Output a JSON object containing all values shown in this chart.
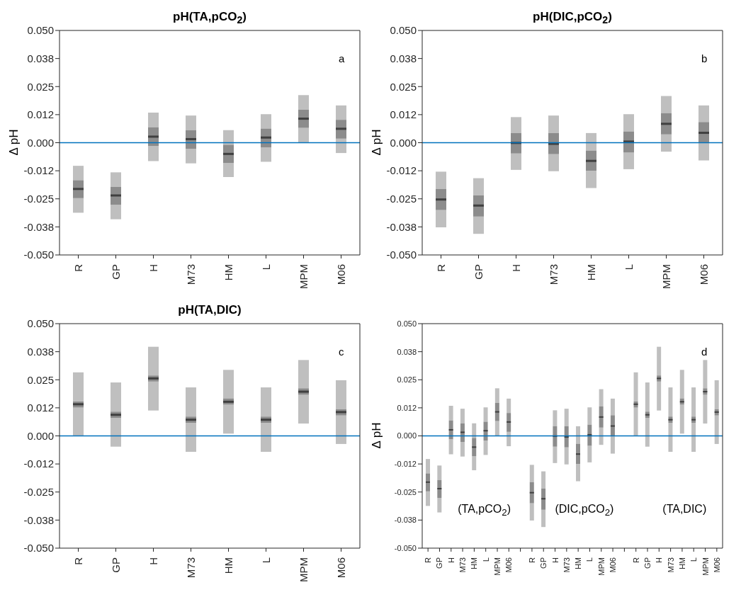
{
  "chart_data": [
    {
      "type": "box",
      "title": "pH(TA,pCO$_{2}$)",
      "ylabel": "Δ pH",
      "annotations": [
        "a"
      ],
      "categories": [
        "R",
        "GP",
        "H",
        "M73",
        "HM",
        "L",
        "MPM",
        "M06"
      ],
      "ylim": [
        -0.05,
        0.05
      ],
      "yticks": [
        {
          "value": -0.05,
          "label": "-0.050"
        },
        {
          "value": -0.0375,
          "label": "-0.038"
        },
        {
          "value": -0.025,
          "label": "-0.025"
        },
        {
          "value": -0.0125,
          "label": "-0.012"
        },
        {
          "value": 0,
          "label": "0.000"
        },
        {
          "value": 0.0125,
          "label": "0.012"
        },
        {
          "value": 0.025,
          "label": "0.025"
        },
        {
          "value": 0.0375,
          "label": "0.038"
        },
        {
          "value": 0.05,
          "label": "0.050"
        }
      ],
      "ref_lines": [
        {
          "axis": "y",
          "value": 0,
          "color": "#0072bd"
        }
      ],
      "series": [
        {
          "color": "#8c8c8c",
          "boxes": [
            {
              "low": -0.0312,
              "q1": -0.0247,
              "median": -0.0206,
              "q3": -0.0167,
              "high": -0.0103
            },
            {
              "low": -0.0341,
              "q1": -0.0276,
              "median": -0.0235,
              "q3": -0.0197,
              "high": -0.0132
            },
            {
              "low": -0.0082,
              "q1": -0.0015,
              "median": 0.0027,
              "q3": 0.0069,
              "high": 0.0134
            },
            {
              "low": -0.0092,
              "q1": -0.0027,
              "median": 0.0016,
              "q3": 0.0056,
              "high": 0.0121
            },
            {
              "low": -0.0153,
              "q1": -0.009,
              "median": -0.005,
              "q3": -0.0009,
              "high": 0.0056
            },
            {
              "low": -0.0085,
              "q1": -0.0021,
              "median": 0.0023,
              "q3": 0.0063,
              "high": 0.0127
            },
            {
              "low": 0,
              "q1": 0.0066,
              "median": 0.0107,
              "q3": 0.0147,
              "high": 0.0212
            },
            {
              "low": -0.0046,
              "q1": 0.0018,
              "median": 0.0062,
              "q3": 0.0102,
              "high": 0.0166
            }
          ]
        }
      ]
    },
    {
      "type": "box",
      "title": "pH(DIC,pCO$_{2}$)",
      "ylabel": "Δ pH",
      "annotations": [
        "b"
      ],
      "categories": [
        "R",
        "GP",
        "H",
        "M73",
        "HM",
        "L",
        "MPM",
        "M06"
      ],
      "ylim": [
        -0.05,
        0.05
      ],
      "yticks": [
        {
          "value": -0.05,
          "label": "-0.050"
        },
        {
          "value": -0.0375,
          "label": "-0.038"
        },
        {
          "value": -0.025,
          "label": "-0.025"
        },
        {
          "value": -0.0125,
          "label": "-0.012"
        },
        {
          "value": 0,
          "label": "0.000"
        },
        {
          "value": 0.0125,
          "label": "0.012"
        },
        {
          "value": 0.025,
          "label": "0.025"
        },
        {
          "value": 0.0375,
          "label": "0.038"
        },
        {
          "value": 0.05,
          "label": "0.050"
        }
      ],
      "ref_lines": [
        {
          "axis": "y",
          "value": 0,
          "color": "#0072bd"
        }
      ],
      "series": [
        {
          "color": "#8c8c8c",
          "boxes": [
            {
              "low": -0.0377,
              "q1": -0.03,
              "median": -0.0253,
              "q3": -0.0206,
              "high": -0.0129
            },
            {
              "low": -0.0406,
              "q1": -0.0329,
              "median": -0.028,
              "q3": -0.0235,
              "high": -0.0158
            },
            {
              "low": -0.0121,
              "q1": -0.0048,
              "median": -0.0001,
              "q3": 0.0043,
              "high": 0.0114
            },
            {
              "low": -0.0127,
              "q1": -0.0051,
              "median": -0.0005,
              "q3": 0.0043,
              "high": 0.0121
            },
            {
              "low": -0.0202,
              "q1": -0.0125,
              "median": -0.0081,
              "q3": -0.0035,
              "high": 0.0043
            },
            {
              "low": -0.0118,
              "q1": -0.0044,
              "median": 0.0005,
              "q3": 0.005,
              "high": 0.0127
            },
            {
              "low": -0.004,
              "q1": 0.0037,
              "median": 0.0084,
              "q3": 0.0131,
              "high": 0.0208
            },
            {
              "low": -0.0079,
              "q1": -0.0001,
              "median": 0.0044,
              "q3": 0.0092,
              "high": 0.0166
            }
          ]
        }
      ]
    },
    {
      "type": "box",
      "title": "pH(TA,DIC)",
      "annotations": [
        "c"
      ],
      "categories": [
        "R",
        "GP",
        "H",
        "M73",
        "HM",
        "L",
        "MPM",
        "M06"
      ],
      "ylim": [
        -0.05,
        0.05
      ],
      "yticks": [
        {
          "value": -0.05,
          "label": "-0.050"
        },
        {
          "value": -0.0375,
          "label": "-0.038"
        },
        {
          "value": -0.025,
          "label": "-0.025"
        },
        {
          "value": -0.0125,
          "label": "-0.012"
        },
        {
          "value": 0,
          "label": "0.000"
        },
        {
          "value": 0.0125,
          "label": "0.012"
        },
        {
          "value": 0.025,
          "label": "0.025"
        },
        {
          "value": 0.0375,
          "label": "0.038"
        },
        {
          "value": 0.05,
          "label": "0.050"
        }
      ],
      "ref_lines": [
        {
          "axis": "y",
          "value": 0,
          "color": "#0072bd"
        }
      ],
      "series": [
        {
          "color": "#8c8c8c",
          "boxes": [
            {
              "low": 0,
              "q1": 0.0126,
              "median": 0.0141,
              "q3": 0.0153,
              "high": 0.0283
            },
            {
              "low": -0.0048,
              "q1": 0.008,
              "median": 0.0094,
              "q3": 0.0108,
              "high": 0.0238
            },
            {
              "low": 0.0113,
              "q1": 0.0242,
              "median": 0.0256,
              "q3": 0.0269,
              "high": 0.0397
            },
            {
              "low": -0.0071,
              "q1": 0.0058,
              "median": 0.0072,
              "q3": 0.0086,
              "high": 0.0216
            },
            {
              "low": 0.001,
              "q1": 0.0139,
              "median": 0.0152,
              "q3": 0.0167,
              "high": 0.0294
            },
            {
              "low": -0.0071,
              "q1": 0.0058,
              "median": 0.0072,
              "q3": 0.0086,
              "high": 0.0216
            },
            {
              "low": 0.0055,
              "q1": 0.0183,
              "median": 0.0197,
              "q3": 0.0212,
              "high": 0.0338
            },
            {
              "low": -0.0036,
              "q1": 0.0091,
              "median": 0.0106,
              "q3": 0.0119,
              "high": 0.0248
            }
          ]
        }
      ]
    },
    {
      "type": "box",
      "ylabel": "Δ pH",
      "annotations": [
        "d",
        "(TA,pCO$_{2}$)",
        "(DIC,pCO$_{2}$)",
        "(TA,DIC)"
      ],
      "categories": [
        "R",
        "GP",
        "H",
        "M73",
        "HM",
        "L",
        "MPM",
        "M06",
        null,
        "R",
        "GP",
        "H",
        "M73",
        "HM",
        "L",
        "MPM",
        "M06",
        null,
        "R",
        "GP",
        "H",
        "M73",
        "HM",
        "L",
        "MPM",
        "M06"
      ],
      "ylim": [
        -0.05,
        0.05
      ],
      "yticks": [
        {
          "value": -0.05,
          "label": "-0.050"
        },
        {
          "value": -0.0375,
          "label": "-0.038"
        },
        {
          "value": -0.025,
          "label": "-0.025"
        },
        {
          "value": -0.0125,
          "label": "-0.012"
        },
        {
          "value": 0,
          "label": "0.000"
        },
        {
          "value": 0.0125,
          "label": "0.012"
        },
        {
          "value": 0.025,
          "label": "0.025"
        },
        {
          "value": 0.0375,
          "label": "0.038"
        },
        {
          "value": 0.05,
          "label": "0.050"
        }
      ],
      "ref_lines": [
        {
          "axis": "y",
          "value": 0,
          "color": "#0072bd"
        }
      ],
      "series": [
        {
          "color": "#8c8c8c",
          "boxes": [
            {
              "low": -0.0312,
              "q1": -0.0247,
              "median": -0.0206,
              "q3": -0.0167,
              "high": -0.0103
            },
            {
              "low": -0.0341,
              "q1": -0.0276,
              "median": -0.0235,
              "q3": -0.0197,
              "high": -0.0132
            },
            {
              "low": -0.0082,
              "q1": -0.0015,
              "median": 0.0027,
              "q3": 0.0069,
              "high": 0.0134
            },
            {
              "low": -0.0092,
              "q1": -0.0027,
              "median": 0.0016,
              "q3": 0.0056,
              "high": 0.0121
            },
            {
              "low": -0.0153,
              "q1": -0.009,
              "median": -0.005,
              "q3": -0.0009,
              "high": 0.0056
            },
            {
              "low": -0.0085,
              "q1": -0.0021,
              "median": 0.0023,
              "q3": 0.0063,
              "high": 0.0127
            },
            {
              "low": 0,
              "q1": 0.0066,
              "median": 0.0107,
              "q3": 0.0147,
              "high": 0.0212
            },
            {
              "low": -0.0046,
              "q1": 0.0018,
              "median": 0.0062,
              "q3": 0.0102,
              "high": 0.0166
            },
            null,
            {
              "low": -0.0377,
              "q1": -0.03,
              "median": -0.0253,
              "q3": -0.0206,
              "high": -0.0129
            },
            {
              "low": -0.0406,
              "q1": -0.0329,
              "median": -0.028,
              "q3": -0.0235,
              "high": -0.0158
            },
            {
              "low": -0.0121,
              "q1": -0.0048,
              "median": -0.0001,
              "q3": 0.0043,
              "high": 0.0114
            },
            {
              "low": -0.0127,
              "q1": -0.0051,
              "median": -0.0005,
              "q3": 0.0043,
              "high": 0.0121
            },
            {
              "low": -0.0202,
              "q1": -0.0125,
              "median": -0.0081,
              "q3": -0.0035,
              "high": 0.0043
            },
            {
              "low": -0.0118,
              "q1": -0.0044,
              "median": 0.0005,
              "q3": 0.005,
              "high": 0.0127
            },
            {
              "low": -0.004,
              "q1": 0.0037,
              "median": 0.0084,
              "q3": 0.0131,
              "high": 0.0208
            },
            {
              "low": -0.0079,
              "q1": -0.0001,
              "median": 0.0044,
              "q3": 0.0092,
              "high": 0.0166
            },
            null,
            {
              "low": 0,
              "q1": 0.0126,
              "median": 0.0141,
              "q3": 0.0153,
              "high": 0.0283
            },
            {
              "low": -0.0048,
              "q1": 0.008,
              "median": 0.0094,
              "q3": 0.0108,
              "high": 0.0238
            },
            {
              "low": 0.0113,
              "q1": 0.0242,
              "median": 0.0256,
              "q3": 0.0269,
              "high": 0.0397
            },
            {
              "low": -0.0071,
              "q1": 0.0058,
              "median": 0.0072,
              "q3": 0.0086,
              "high": 0.0216
            },
            {
              "low": 0.001,
              "q1": 0.0139,
              "median": 0.0152,
              "q3": 0.0167,
              "high": 0.0294
            },
            {
              "low": -0.0071,
              "q1": 0.0058,
              "median": 0.0072,
              "q3": 0.0086,
              "high": 0.0216
            },
            {
              "low": 0.0055,
              "q1": 0.0183,
              "median": 0.0197,
              "q3": 0.0212,
              "high": 0.0338
            },
            {
              "low": -0.0036,
              "q1": 0.0091,
              "median": 0.0106,
              "q3": 0.0119,
              "high": 0.0248
            }
          ]
        }
      ]
    }
  ]
}
